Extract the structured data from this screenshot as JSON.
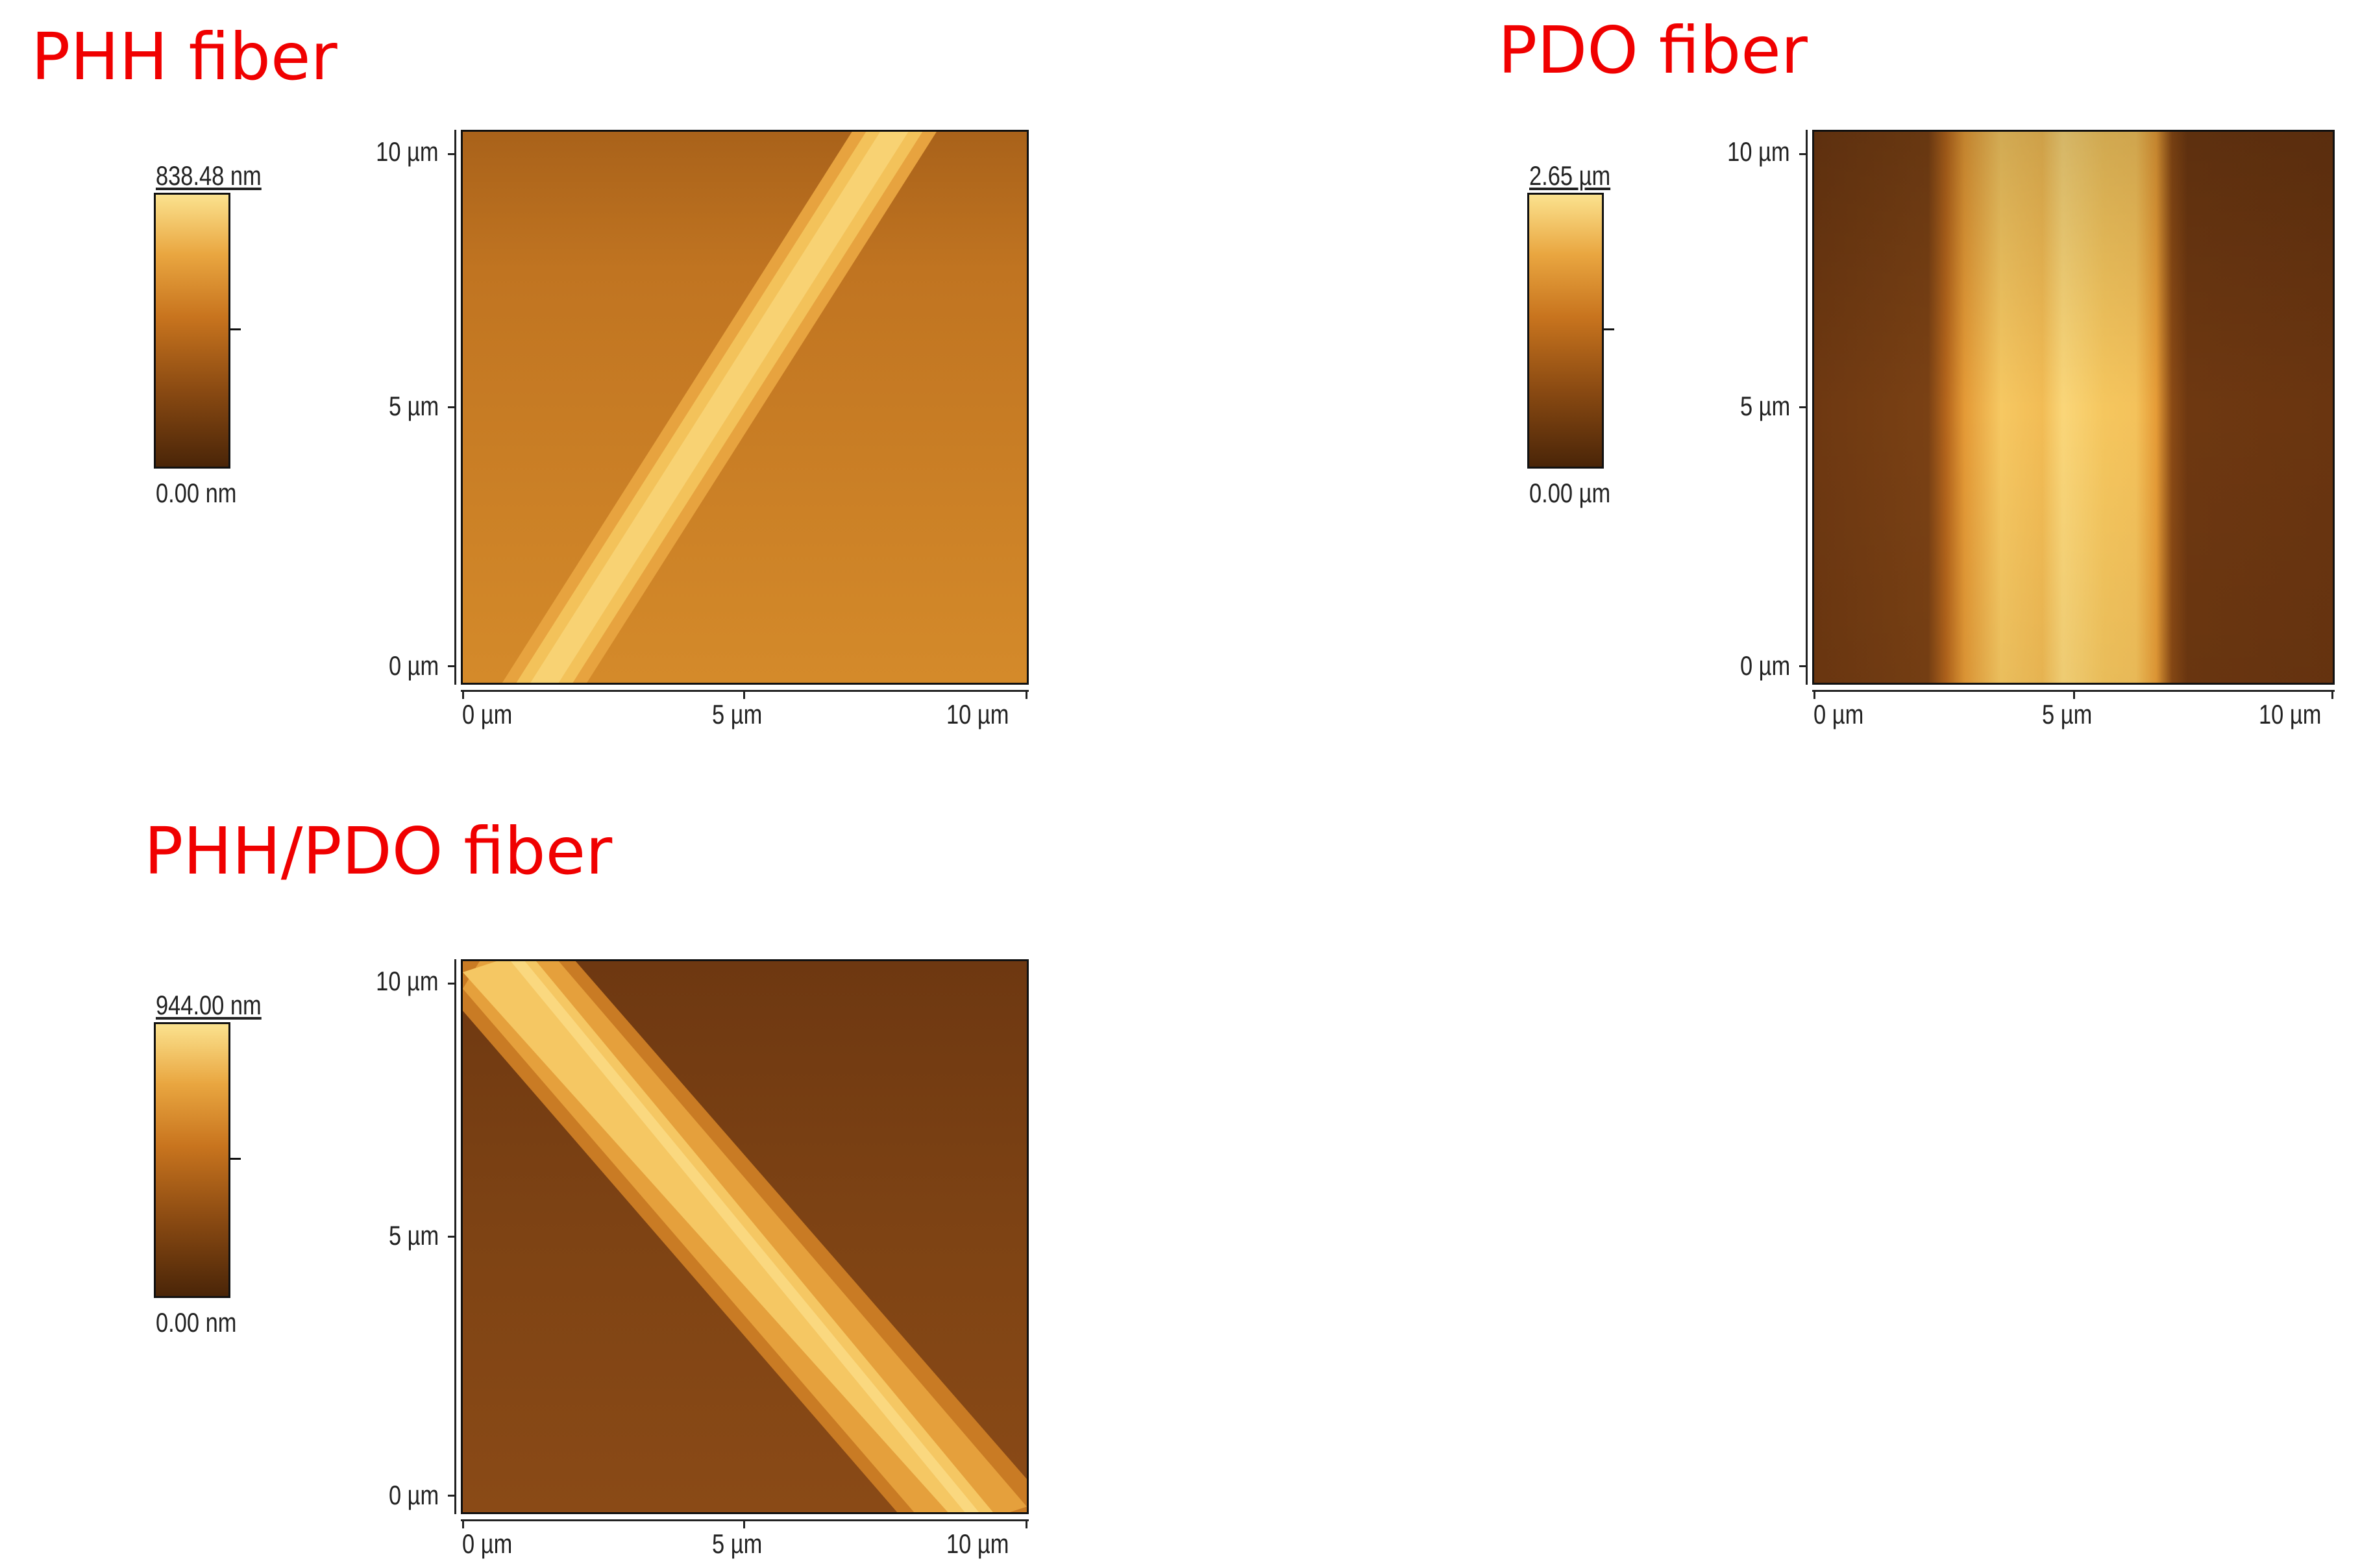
{
  "panels": {
    "phh": {
      "title": "PHH fiber",
      "colorbar": {
        "max": "838.48 nm",
        "min": "0.00 nm"
      },
      "y_ticks": [
        "10 µm",
        "5 µm",
        "0 µm"
      ],
      "x_ticks": [
        "0 µm",
        "5 µm",
        "10 µm"
      ]
    },
    "pdo": {
      "title": "PDO fiber",
      "colorbar": {
        "max": "2.65 µm",
        "min": "0.00 µm"
      },
      "y_ticks": [
        "10 µm",
        "5 µm",
        "0 µm"
      ],
      "x_ticks": [
        "0 µm",
        "5 µm",
        "10 µm"
      ]
    },
    "phh_pdo": {
      "title": "PHH/PDO fiber",
      "colorbar": {
        "max": "944.00 nm",
        "min": "0.00 nm"
      },
      "y_ticks": [
        "10 µm",
        "5 µm",
        "0 µm"
      ],
      "x_ticks": [
        "0 µm",
        "5 µm",
        "10 µm"
      ]
    }
  },
  "colors": {
    "title": "#f00000",
    "colormap_low": "#4a2508",
    "colormap_high": "#fbe28e"
  }
}
